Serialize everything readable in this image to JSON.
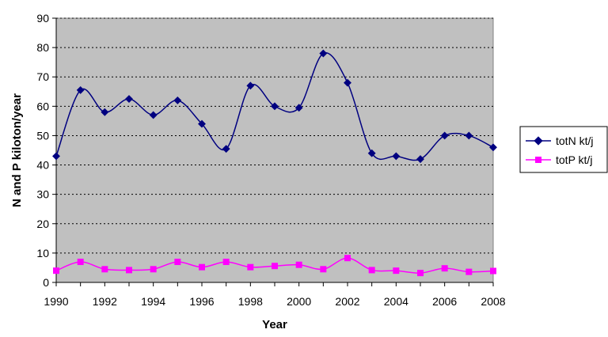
{
  "chart_data": {
    "type": "line",
    "title": "",
    "xlabel": "Year",
    "ylabel": "N and P kiloton/year",
    "xlim": [
      1990,
      2008
    ],
    "ylim": [
      0,
      90
    ],
    "x_ticks": [
      "1990",
      "1992",
      "1994",
      "1996",
      "1998",
      "2000",
      "2002",
      "2004",
      "2006",
      "2008"
    ],
    "y_ticks": [
      "0",
      "10",
      "20",
      "30",
      "40",
      "50",
      "60",
      "70",
      "80",
      "90"
    ],
    "grid": "horizontal dotted",
    "legend_position": "right",
    "plot_background": "#c0c0c0",
    "x": [
      1990,
      1991,
      1992,
      1993,
      1994,
      1995,
      1996,
      1997,
      1998,
      1999,
      2000,
      2001,
      2002,
      2003,
      2004,
      2005,
      2006,
      2007,
      2008
    ],
    "series": [
      {
        "name": "totN kt/j",
        "color": "#000080",
        "marker": "diamond",
        "values": [
          43,
          65.5,
          58,
          62.5,
          57,
          62,
          54,
          45.5,
          67,
          60,
          59.5,
          78,
          68,
          44,
          43,
          42,
          50,
          50,
          46
        ]
      },
      {
        "name": "totP kt/j",
        "color": "#ff00ff",
        "marker": "square",
        "values": [
          4,
          7,
          4.5,
          4.2,
          4.5,
          7,
          5.2,
          7,
          5.2,
          5.6,
          6,
          4.5,
          8.3,
          4.2,
          4,
          3.2,
          4.8,
          3.6,
          3.9
        ]
      }
    ]
  }
}
